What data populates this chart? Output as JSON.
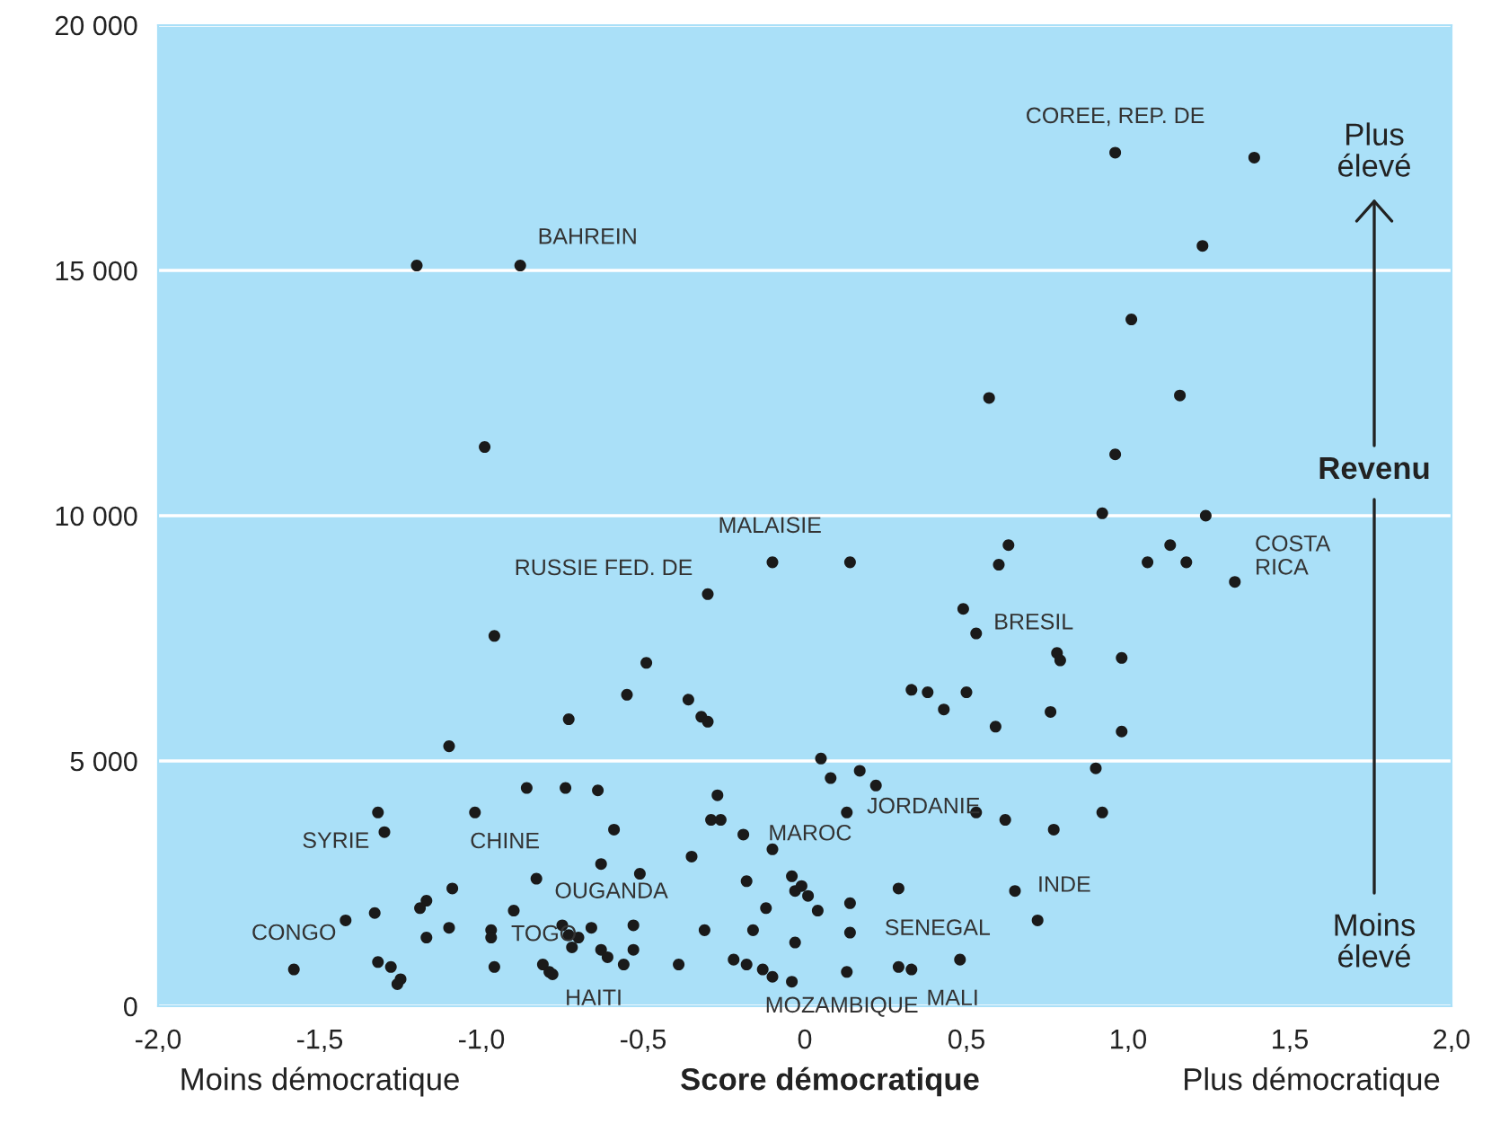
{
  "chart_data": {
    "type": "scatter",
    "xlabel": "Score démocratique",
    "ylabel": "Revenu",
    "xlim": [
      -2.0,
      2.0
    ],
    "ylim": [
      0,
      20000
    ],
    "xticks": [
      {
        "value": -2.0,
        "label": "-2,0"
      },
      {
        "value": -1.5,
        "label": "-1,5"
      },
      {
        "value": -1.0,
        "label": "-1,0"
      },
      {
        "value": -0.5,
        "label": "-0,5"
      },
      0,
      {
        "value": 0.5,
        "label": "0,5"
      },
      {
        "value": 1.0,
        "label": "1,0"
      },
      {
        "value": 1.5,
        "label": "1,5"
      },
      {
        "value": 2.0,
        "label": "2,0"
      }
    ],
    "yticks": [
      0,
      {
        "value": 5000,
        "label": "5 000"
      },
      {
        "value": 10000,
        "label": "10 000"
      },
      {
        "value": 15000,
        "label": "15 000"
      },
      {
        "value": 20000,
        "label": "20 000"
      }
    ],
    "grid": "y",
    "marker": "circle",
    "series": [
      {
        "color": "#1a1a1a",
        "x": [
          -0.55,
          -0.36,
          -0.32,
          -0.3,
          -0.73,
          -1.1,
          -0.86,
          -0.74,
          -0.64,
          -1.32,
          -1.02,
          -1.3,
          -0.59,
          -0.35,
          -0.63,
          -0.83,
          -0.51,
          -1.09,
          -1.17,
          -1.19,
          -1.33,
          -1.42,
          -0.9,
          -1.1,
          -1.17,
          -0.97,
          -0.97,
          -0.75,
          -0.73,
          -0.7,
          -0.66,
          -0.53,
          -0.72,
          -0.63,
          -0.61,
          -0.53,
          -0.56,
          -0.39,
          -1.58,
          -1.32,
          -1.28,
          -1.25,
          -1.26,
          -0.96,
          -0.81,
          -0.79,
          -0.78,
          0.33,
          0.38,
          0.5,
          0.43,
          0.59,
          0.76,
          0.98,
          0.05,
          0.08,
          0.17,
          0.22,
          -0.27,
          -0.29,
          -0.26,
          -0.19,
          0.13,
          0.53,
          0.62,
          0.77,
          0.9,
          0.92,
          -0.1,
          -0.18,
          -0.04,
          -0.03,
          -0.01,
          0.01,
          -0.12,
          0.04,
          0.14,
          0.29,
          0.65,
          0.72,
          -0.31,
          -0.16,
          0.14,
          -0.03,
          0.48,
          -0.22,
          -0.18,
          -0.13,
          -0.1,
          -0.04,
          0.13,
          0.29,
          0.33,
          -1.2,
          -0.88,
          -0.99,
          -0.1,
          0.14,
          -0.3,
          -0.96,
          -0.49,
          0.96,
          1.39,
          1.23,
          1.01,
          0.57,
          1.16,
          0.96,
          0.92,
          1.24,
          0.63,
          0.6,
          1.13,
          1.06,
          1.18,
          1.33,
          0.49,
          0.53,
          0.78,
          0.79,
          0.98
        ],
        "values": [
          6350,
          6250,
          5900,
          5800,
          5850,
          5300,
          4450,
          4450,
          4400,
          3950,
          3950,
          3550,
          3600,
          3050,
          2900,
          2600,
          2700,
          2400,
          2150,
          2000,
          1900,
          1750,
          1950,
          1600,
          1400,
          1550,
          1400,
          1650,
          1450,
          1400,
          1600,
          1650,
          1200,
          1150,
          1000,
          1150,
          850,
          850,
          750,
          900,
          800,
          550,
          450,
          800,
          850,
          700,
          650,
          6450,
          6400,
          6400,
          6050,
          5700,
          6000,
          5600,
          5050,
          4650,
          4800,
          4500,
          4300,
          3800,
          3800,
          3500,
          3950,
          3950,
          3800,
          3600,
          4850,
          3950,
          3200,
          2550,
          2650,
          2350,
          2450,
          2250,
          2000,
          1950,
          2100,
          2400,
          2350,
          1750,
          1550,
          1550,
          1500,
          1300,
          950,
          950,
          850,
          750,
          600,
          500,
          700,
          800,
          750,
          15100,
          15100,
          11400,
          9050,
          9050,
          8400,
          7550,
          7000,
          17400,
          17300,
          15500,
          14000,
          12400,
          12450,
          11250,
          10050,
          10000,
          9400,
          9000,
          9400,
          9050,
          9050,
          8650,
          8100,
          7600,
          7200,
          7050,
          7100
        ]
      }
    ],
    "annotations": [
      {
        "text": "CONGO",
        "x": -1.58,
        "y": 750
      },
      {
        "text": "SYRIE",
        "x": -1.3,
        "y": 3550
      },
      {
        "text": "CHINE",
        "x": -1.02,
        "y": 3950
      },
      {
        "text": "TOGO",
        "x": -0.97,
        "y": 1400
      },
      {
        "text": "OUGANDA",
        "x": -0.66,
        "y": 1600
      },
      {
        "text": "HAITI",
        "x": -0.78,
        "y": 650
      },
      {
        "text": "BAHREIN",
        "x": -0.88,
        "y": 15100
      },
      {
        "text": "RUSSIE FED. DE",
        "x": -0.3,
        "y": 8400
      },
      {
        "text": "MALAISIE",
        "x": -0.1,
        "y": 9050
      },
      {
        "text": "MAROC",
        "x": -0.19,
        "y": 3500
      },
      {
        "text": "MOZAMBIQUE",
        "x": -0.04,
        "y": 500
      },
      {
        "text": "JORDANIE",
        "x": 0.13,
        "y": 3950
      },
      {
        "text": "SENEGAL",
        "x": 0.48,
        "y": 950
      },
      {
        "text": "MALI",
        "x": 0.33,
        "y": 750
      },
      {
        "text": "INDE",
        "x": 0.65,
        "y": 2350
      },
      {
        "text": "BRESIL",
        "x": 0.53,
        "y": 7600
      },
      {
        "text": "COREE, REP. DE",
        "x": 0.96,
        "y": 17400
      },
      {
        "text": "COSTA\nRICA",
        "x": 1.33,
        "y": 8650
      },
      "Plus\nélevé",
      "Moins\nélevé",
      "Moins démocratique",
      "Plus démocratique"
    ]
  }
}
